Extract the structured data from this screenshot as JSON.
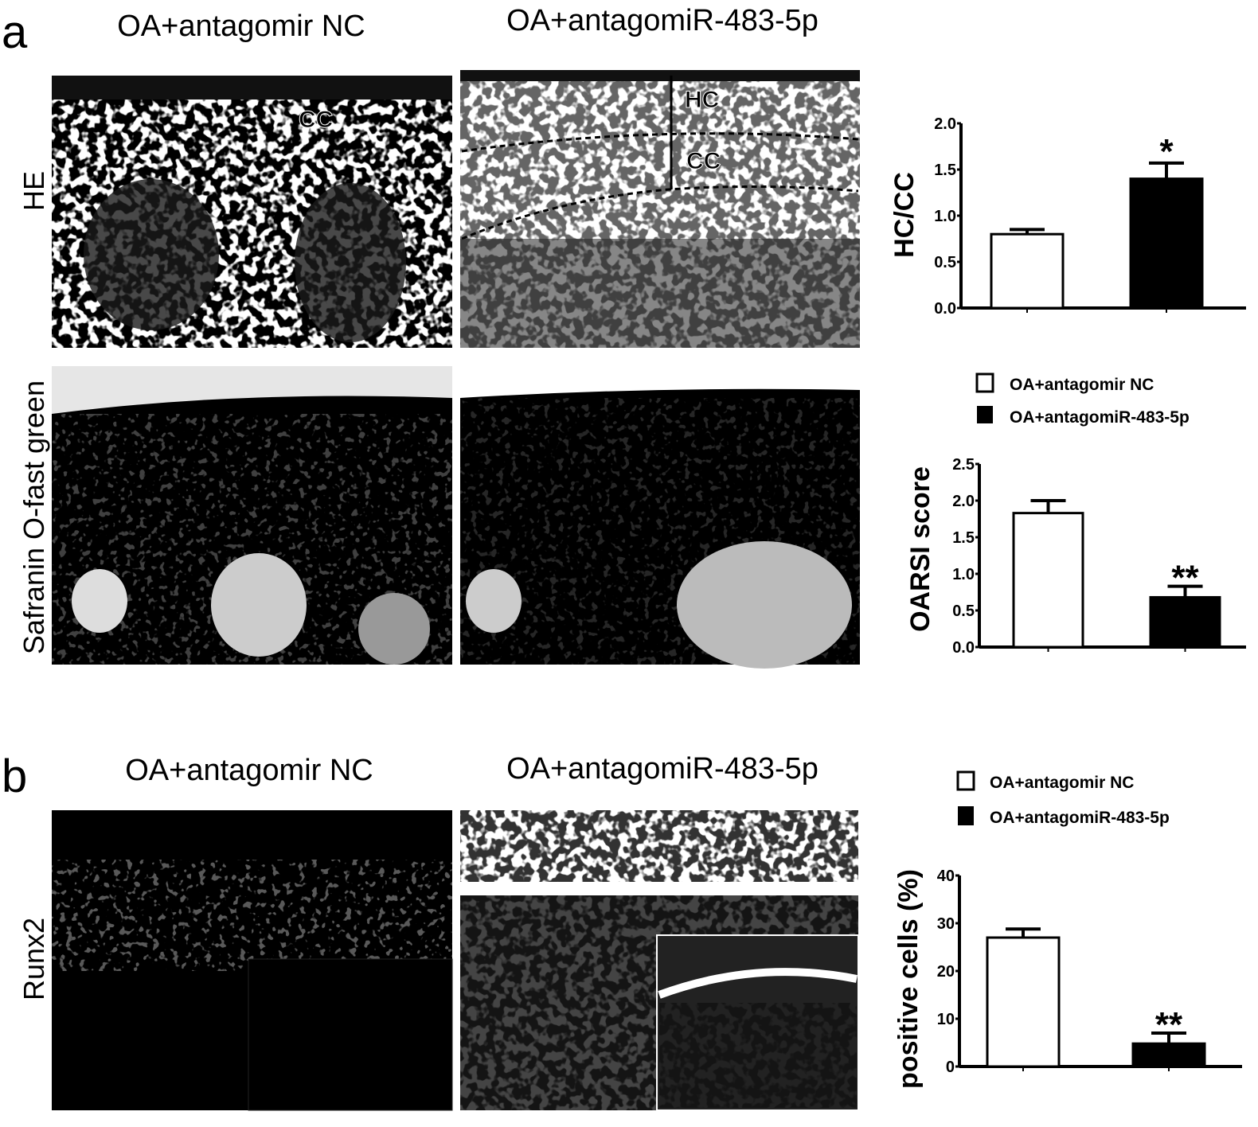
{
  "panel_a": {
    "letter": "a",
    "col_titles": [
      "OA+antagomir NC",
      "OA+antagomiR-483-5p"
    ],
    "row_labels": [
      "HE",
      "Safranin O-fast green"
    ],
    "image_labels": {
      "hc": "HC",
      "cc": "CC"
    }
  },
  "panel_b": {
    "letter": "b",
    "col_titles": [
      "OA+antagomir NC",
      "OA+antagomiR-483-5p"
    ],
    "row_labels": [
      "Runx2"
    ]
  },
  "legend": [
    "OA+antagomir NC",
    "OA+antagomiR-483-5p"
  ],
  "colors": {
    "nc": "#ffffff",
    "antagomir": "#000000",
    "stroke": "#000000"
  },
  "chart_data": [
    {
      "type": "bar",
      "categories": [
        "OA+antagomir NC",
        "OA+antagomiR-483-5p"
      ],
      "values": [
        0.8,
        1.4
      ],
      "errors": [
        0.05,
        0.17
      ],
      "significance": [
        "",
        "*"
      ],
      "ylabel": "HC/CC",
      "ylim": [
        0,
        2.0
      ],
      "yticks": [
        "0.0",
        "0.5",
        "1.0",
        "1.5",
        "2.0"
      ],
      "tick_values": [
        0,
        0.5,
        1.0,
        1.5,
        2.0
      ],
      "grid": false,
      "legend": "none"
    },
    {
      "type": "bar",
      "categories": [
        "OA+antagomir NC",
        "OA+antagomiR-483-5p"
      ],
      "values": [
        1.83,
        0.68
      ],
      "errors": [
        0.17,
        0.15
      ],
      "significance": [
        "",
        "**"
      ],
      "ylabel": "OARSI  score",
      "ylim": [
        0,
        2.5
      ],
      "yticks": [
        "0.0",
        "0.5",
        "1.0",
        "1.5",
        "2.0",
        "2.5"
      ],
      "tick_values": [
        0,
        0.5,
        1.0,
        1.5,
        2.0,
        2.5
      ],
      "grid": false,
      "legend": "top"
    },
    {
      "type": "bar",
      "categories": [
        "OA+antagomir NC",
        "OA+antagomiR-483-5p"
      ],
      "values": [
        27,
        4.8
      ],
      "errors": [
        1.8,
        2.2
      ],
      "significance": [
        "",
        "**"
      ],
      "ylabel": "positive cells (%)",
      "ylim": [
        0,
        40
      ],
      "yticks": [
        "0",
        "10",
        "20",
        "30",
        "40"
      ],
      "tick_values": [
        0,
        10,
        20,
        30,
        40
      ],
      "grid": false,
      "legend": "top"
    }
  ]
}
